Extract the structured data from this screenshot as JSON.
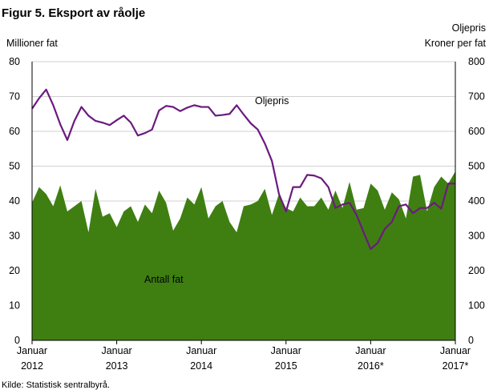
{
  "title": "Figur 5. Eksport av råolje",
  "source": "Kilde: Statistisk sentralbyrå.",
  "chart_data": {
    "type": "area",
    "y_left": {
      "label": "Millioner  fat",
      "range": [
        0,
        80
      ],
      "ticks": [
        0,
        10,
        20,
        30,
        40,
        50,
        60,
        70,
        80
      ]
    },
    "y_right": {
      "label_line1": "Oljepris",
      "label_line2": "Kroner per fat",
      "range": [
        0,
        800
      ],
      "ticks": [
        0,
        100,
        200,
        300,
        400,
        500,
        600,
        700,
        800
      ]
    },
    "x_axis": {
      "start": "2012-01",
      "ticks": [
        {
          "month_index": 0,
          "line1": "Januar",
          "line2": "2012"
        },
        {
          "month_index": 12,
          "line1": "Januar",
          "line2": "2013"
        },
        {
          "month_index": 24,
          "line1": "Januar",
          "line2": "2014"
        },
        {
          "month_index": 36,
          "line1": "Januar",
          "line2": "2015"
        },
        {
          "month_index": 48,
          "line1": "Januar",
          "line2": "2016*"
        },
        {
          "month_index": 60,
          "line1": "Januar",
          "line2": "2017*"
        }
      ]
    },
    "grid": true,
    "series": [
      {
        "name": "Antall fat",
        "axis": "left",
        "style": "area",
        "color": "#3f7f12",
        "values": [
          39.5,
          44.0,
          42.0,
          38.5,
          44.5,
          37.0,
          38.5,
          40.0,
          31.0,
          43.5,
          35.5,
          36.5,
          32.5,
          37.0,
          38.5,
          34.0,
          39.0,
          36.5,
          43.0,
          39.5,
          31.5,
          35.0,
          41.0,
          39.0,
          44.0,
          35.0,
          38.5,
          40.0,
          34.0,
          31.0,
          38.5,
          39.0,
          40.0,
          43.5,
          36.0,
          42.0,
          38.0,
          37.0,
          41.0,
          38.5,
          38.5,
          41.0,
          37.5,
          43.0,
          38.0,
          45.5,
          37.5,
          38.0,
          45.0,
          43.0,
          37.5,
          42.5,
          40.5,
          35.0,
          47.0,
          47.5,
          37.0,
          44.0,
          47.0,
          45.0,
          48.5
        ]
      },
      {
        "name": "Oljepris",
        "axis": "right",
        "style": "line",
        "color": "#6b1a7f",
        "values": [
          665,
          695,
          720,
          675,
          620,
          575,
          630,
          670,
          645,
          630,
          625,
          618,
          632,
          645,
          625,
          588,
          595,
          605,
          660,
          673,
          670,
          658,
          668,
          675,
          670,
          670,
          645,
          647,
          650,
          675,
          648,
          623,
          605,
          565,
          515,
          420,
          370,
          440,
          440,
          475,
          473,
          465,
          440,
          380,
          390,
          395,
          360,
          310,
          262,
          280,
          320,
          340,
          385,
          390,
          365,
          380,
          380,
          395,
          378,
          450,
          450
        ]
      }
    ],
    "annotations": [
      {
        "text": "Oljepris",
        "series": "Oljepris"
      },
      {
        "text": "Antall fat",
        "series": "Antall fat"
      }
    ]
  }
}
